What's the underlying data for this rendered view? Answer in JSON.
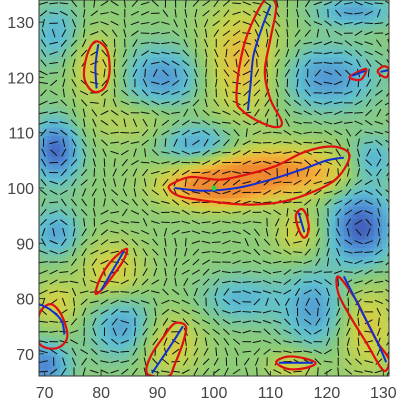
{
  "chart_data": {
    "type": "heatmap",
    "title": "",
    "xlabel": "",
    "ylabel": "",
    "xlim": [
      69,
      131
    ],
    "ylim": [
      66,
      134
    ],
    "grid": false,
    "colormap": [
      "#3b4bb0",
      "#4f8fd6",
      "#5fc0cf",
      "#8ccc78",
      "#c9d34a",
      "#f3b43a",
      "#f08a30"
    ],
    "x_ticks": [
      "70",
      "80",
      "90",
      "100",
      "110",
      "120",
      "130"
    ],
    "y_ticks": [
      "70",
      "80",
      "90",
      "100",
      "110",
      "120",
      "130"
    ],
    "x_tick_values": [
      70,
      80,
      90,
      100,
      110,
      120,
      130
    ],
    "y_tick_values": [
      70,
      80,
      90,
      100,
      110,
      120,
      130
    ],
    "contour_color": "#e01010",
    "skeleton_color": "#1030d0",
    "marker_color": "#30d040",
    "director_color": "#111111",
    "marker": {
      "x": 100,
      "y": 100
    },
    "intensity_blobs": [
      {
        "x": 110,
        "y": 103,
        "value": 1.0,
        "sx": 10,
        "sy": 3
      },
      {
        "x": 100,
        "y": 100,
        "value": 0.9,
        "sx": 6,
        "sy": 2.5
      },
      {
        "x": 105,
        "y": 123,
        "value": 0.6,
        "sx": 5,
        "sy": 7
      },
      {
        "x": 79,
        "y": 122,
        "value": 0.5,
        "sx": 3,
        "sy": 4
      },
      {
        "x": 82,
        "y": 85,
        "value": 0.45,
        "sx": 4,
        "sy": 4
      },
      {
        "x": 92,
        "y": 72,
        "value": 0.45,
        "sx": 4,
        "sy": 4
      },
      {
        "x": 127,
        "y": 75,
        "value": 0.45,
        "sx": 4,
        "sy": 6
      },
      {
        "x": 115,
        "y": 92,
        "value": 0.4,
        "sx": 3,
        "sy": 3
      },
      {
        "x": 72,
        "y": 79,
        "value": 0.4,
        "sx": 3,
        "sy": 3
      },
      {
        "x": 114,
        "y": 68,
        "value": 0.4,
        "sx": 3,
        "sy": 2
      },
      {
        "x": 87,
        "y": 112,
        "value": 0.25,
        "sx": 8,
        "sy": 3
      },
      {
        "x": 72,
        "y": 107,
        "value": -0.85,
        "sx": 3,
        "sy": 4
      },
      {
        "x": 126,
        "y": 93,
        "value": -0.9,
        "sx": 4,
        "sy": 5
      },
      {
        "x": 91,
        "y": 120,
        "value": -0.6,
        "sx": 5,
        "sy": 4
      },
      {
        "x": 97,
        "y": 108,
        "value": -0.6,
        "sx": 5,
        "sy": 3
      },
      {
        "x": 120,
        "y": 120,
        "value": -0.6,
        "sx": 6,
        "sy": 4
      },
      {
        "x": 128,
        "y": 105,
        "value": -0.5,
        "sx": 3,
        "sy": 3
      },
      {
        "x": 72,
        "y": 92,
        "value": -0.5,
        "sx": 3,
        "sy": 3
      },
      {
        "x": 84,
        "y": 75,
        "value": -0.55,
        "sx": 4,
        "sy": 4
      },
      {
        "x": 118,
        "y": 78,
        "value": -0.55,
        "sx": 4,
        "sy": 5
      },
      {
        "x": 105,
        "y": 80,
        "value": -0.4,
        "sx": 5,
        "sy": 3
      },
      {
        "x": 72,
        "y": 128,
        "value": -0.4,
        "sx": 3,
        "sy": 4
      },
      {
        "x": 70,
        "y": 68,
        "value": -0.7,
        "sx": 3,
        "sy": 3
      },
      {
        "x": 125,
        "y": 132,
        "value": -0.5,
        "sx": 5,
        "sy": 2
      }
    ],
    "regions": [
      {
        "name": "central-streak",
        "contour": [
          [
            93,
            101
          ],
          [
            96,
            102
          ],
          [
            101,
            101.5
          ],
          [
            106,
            102.5
          ],
          [
            111,
            104
          ],
          [
            116,
            106.5
          ],
          [
            121,
            107.5
          ],
          [
            124,
            106
          ],
          [
            122,
            102
          ],
          [
            118,
            99.5
          ],
          [
            112,
            97.5
          ],
          [
            106,
            97
          ],
          [
            100,
            97.5
          ],
          [
            94,
            98.5
          ],
          [
            92,
            100
          ]
        ],
        "skeleton": [
          [
            93,
            100
          ],
          [
            98,
            99.5
          ],
          [
            104,
            100
          ],
          [
            110,
            101.5
          ],
          [
            116,
            103.5
          ],
          [
            120,
            105
          ],
          [
            123,
            105.5
          ]
        ]
      },
      {
        "name": "upper-crescent",
        "contour": [
          [
            104,
            116
          ],
          [
            104.5,
            122
          ],
          [
            106,
            128
          ],
          [
            109,
            134
          ],
          [
            111,
            133
          ],
          [
            110,
            127
          ],
          [
            109,
            121
          ],
          [
            110,
            116
          ],
          [
            112,
            112
          ],
          [
            111,
            111
          ],
          [
            108,
            112
          ],
          [
            105,
            114
          ]
        ],
        "skeleton": [
          [
            106,
            114
          ],
          [
            106.5,
            119
          ],
          [
            107,
            124
          ],
          [
            108.5,
            129
          ],
          [
            110,
            133
          ]
        ]
      },
      {
        "name": "upper-left-blob",
        "contour": [
          [
            77,
            120
          ],
          [
            77.5,
            124
          ],
          [
            79,
            126.5
          ],
          [
            81,
            125
          ],
          [
            81.5,
            121
          ],
          [
            80.5,
            118
          ],
          [
            78.5,
            117.5
          ]
        ],
        "skeleton": [
          [
            79.5,
            126
          ],
          [
            79,
            122
          ],
          [
            79.2,
            118
          ]
        ]
      },
      {
        "name": "left-mid-ellipse",
        "contour": [
          [
            79,
            81
          ],
          [
            80,
            84
          ],
          [
            82,
            87
          ],
          [
            84.5,
            89
          ],
          [
            84,
            87
          ],
          [
            82,
            84
          ],
          [
            80,
            81.5
          ]
        ],
        "skeleton": [
          [
            80,
            81.5
          ],
          [
            82,
            85
          ],
          [
            84,
            88.5
          ]
        ]
      },
      {
        "name": "left-edge-blob",
        "contour": [
          [
            69,
            77
          ],
          [
            69,
            72
          ],
          [
            72,
            71
          ],
          [
            74,
            73
          ],
          [
            73,
            77
          ],
          [
            71,
            79
          ]
        ],
        "skeleton": [
          [
            69,
            79
          ],
          [
            71,
            78
          ],
          [
            73,
            76
          ],
          [
            73.5,
            73.5
          ]
        ]
      },
      {
        "name": "bottom-crescent",
        "contour": [
          [
            88,
            67
          ],
          [
            89,
            70
          ],
          [
            91,
            73
          ],
          [
            93,
            75.5
          ],
          [
            95,
            75
          ],
          [
            94.5,
            72
          ],
          [
            93,
            68
          ],
          [
            92,
            66
          ],
          [
            89,
            66
          ]
        ],
        "skeleton": [
          [
            89,
            66.5
          ],
          [
            92,
            71
          ],
          [
            94.5,
            75
          ]
        ]
      },
      {
        "name": "right-arm",
        "contour": [
          [
            122,
            84
          ],
          [
            125,
            80
          ],
          [
            127,
            76
          ],
          [
            129,
            72
          ],
          [
            131,
            69
          ],
          [
            130,
            67
          ],
          [
            127,
            72
          ],
          [
            124,
            77
          ],
          [
            122,
            81
          ]
        ],
        "skeleton": [
          [
            123,
            84
          ],
          [
            126,
            78
          ],
          [
            129,
            72
          ],
          [
            130.5,
            68.5
          ]
        ]
      },
      {
        "name": "small-right-oval",
        "contour": [
          [
            114.5,
            95
          ],
          [
            115,
            92.5
          ],
          [
            116,
            91
          ],
          [
            116.8,
            92.5
          ],
          [
            116.4,
            95
          ],
          [
            115.5,
            96.2
          ]
        ],
        "skeleton": [
          [
            115,
            95.5
          ],
          [
            116,
            92
          ]
        ]
      },
      {
        "name": "bottom-oval",
        "contour": [
          [
            111,
            68.5
          ],
          [
            113,
            69.5
          ],
          [
            116,
            69.2
          ],
          [
            118,
            68.3
          ],
          [
            116,
            67.4
          ],
          [
            113,
            67.3
          ]
        ],
        "skeleton": [
          [
            111.5,
            68.4
          ],
          [
            117.5,
            68.4
          ]
        ]
      },
      {
        "name": "upper-right-dash",
        "contour": [
          [
            124,
            120
          ],
          [
            125.5,
            121
          ],
          [
            127,
            121.5
          ],
          [
            126,
            119.6
          ]
        ],
        "skeleton": [
          [
            124.5,
            120.3
          ],
          [
            126.8,
            121.2
          ]
        ]
      },
      {
        "name": "top-right-corner",
        "contour": [
          [
            129,
            121
          ],
          [
            130,
            122
          ],
          [
            131,
            121.5
          ],
          [
            130.5,
            120
          ]
        ],
        "skeleton": [
          [
            129.5,
            121
          ],
          [
            130.8,
            121.3
          ]
        ]
      }
    ]
  }
}
